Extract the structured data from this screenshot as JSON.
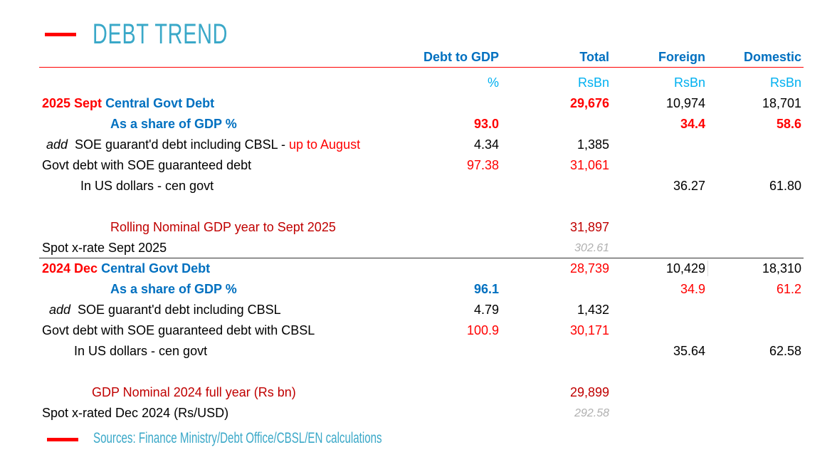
{
  "title": "DEBT TREND",
  "accent_colors": {
    "title": "#3aa8c8",
    "header": "#0070c0",
    "highlight": "#ff0000",
    "dark_red": "#c00000",
    "unit": "#00b0f0"
  },
  "columns": [
    {
      "header": "Debt to GDP",
      "unit": "%"
    },
    {
      "header": "Total",
      "unit": "RsBn"
    },
    {
      "header": "Foreign",
      "unit": "RsBn"
    },
    {
      "header": "Domestic",
      "unit": "RsBn"
    }
  ],
  "rows": [
    {
      "indent": 59,
      "parts": [
        {
          "text": "2025 Sept ",
          "cls": "red b"
        },
        {
          "text": "Central Govt Debt",
          "cls": "blue b"
        }
      ],
      "values": [
        "",
        "29,676",
        "10,974",
        "18,701"
      ],
      "vcls": [
        "",
        "red b",
        "black",
        "black"
      ]
    },
    {
      "indent": 155,
      "parts": [
        {
          "text": "As a share of GDP %",
          "cls": "blue b"
        }
      ],
      "values": [
        "93.0",
        "",
        "34.4",
        "58.6"
      ],
      "vcls": [
        "red b",
        "",
        "red b",
        "red b"
      ]
    },
    {
      "indent": 65,
      "parts": [
        {
          "text": "add ",
          "cls": "i"
        },
        {
          "text": " SOE guarant'd debt including CBSL - ",
          "cls": "black"
        },
        {
          "text": "up to August",
          "cls": "red"
        }
      ],
      "values": [
        "4.34",
        "1,385",
        "",
        ""
      ],
      "vcls": [
        "black",
        "black",
        "",
        ""
      ]
    },
    {
      "indent": 59,
      "parts": [
        {
          "text": "Govt debt with SOE guaranteed debt",
          "cls": "black"
        }
      ],
      "values": [
        "97.38",
        "31,061",
        "",
        ""
      ],
      "vcls": [
        "red",
        "red",
        "",
        ""
      ]
    },
    {
      "indent": 113,
      "parts": [
        {
          "text": "In US dollars - cen govt",
          "cls": "black"
        }
      ],
      "values": [
        "",
        "",
        "36.27",
        "61.80"
      ],
      "vcls": [
        "",
        "",
        "black",
        "black"
      ]
    },
    {
      "indent": 59,
      "parts": [],
      "values": [
        "",
        "",
        "",
        ""
      ],
      "vcls": [
        "",
        "",
        "",
        ""
      ]
    },
    {
      "indent": 155,
      "parts": [
        {
          "text": "Rolling Nominal GDP year to Sept 2025",
          "cls": "dred"
        }
      ],
      "values": [
        "",
        "31,897",
        "",
        ""
      ],
      "vcls": [
        "",
        "dred",
        "",
        ""
      ]
    },
    {
      "indent": 59,
      "parts": [
        {
          "text": "Spot x-rate Sept 2025",
          "cls": "black"
        }
      ],
      "values": [
        "",
        "302.61",
        "",
        ""
      ],
      "vcls": [
        "",
        "gray",
        "",
        ""
      ]
    },
    {
      "indent": 59,
      "parts": [
        {
          "text": "2024 Dec ",
          "cls": "red b"
        },
        {
          "text": "Central Govt Debt",
          "cls": "blue b"
        }
      ],
      "values": [
        "",
        "28,739",
        "10,429",
        "18,310"
      ],
      "vcls": [
        "",
        "red",
        "black",
        "black"
      ]
    },
    {
      "indent": 155,
      "parts": [
        {
          "text": "As a share of GDP %",
          "cls": "blue b"
        }
      ],
      "values": [
        "96.1",
        "",
        "34.9",
        "61.2"
      ],
      "vcls": [
        "blue b",
        "",
        "red",
        "red"
      ]
    },
    {
      "indent": 69,
      "parts": [
        {
          "text": "add ",
          "cls": "i"
        },
        {
          "text": " SOE guarant'd debt including CBSL",
          "cls": "black"
        }
      ],
      "values": [
        "4.79",
        "1,432",
        "",
        ""
      ],
      "vcls": [
        "black",
        "black",
        "",
        ""
      ]
    },
    {
      "indent": 59,
      "parts": [
        {
          "text": "Govt debt with SOE guaranteed debt with CBSL",
          "cls": "black"
        }
      ],
      "values": [
        "100.9",
        "30,171",
        "",
        ""
      ],
      "vcls": [
        "red",
        "red",
        "",
        ""
      ]
    },
    {
      "indent": 104,
      "parts": [
        {
          "text": "In US dollars - cen govt",
          "cls": "black"
        }
      ],
      "values": [
        "",
        "",
        "35.64",
        "62.58"
      ],
      "vcls": [
        "",
        "",
        "black",
        "black"
      ]
    },
    {
      "indent": 59,
      "parts": [],
      "values": [
        "",
        "",
        "",
        ""
      ],
      "vcls": [
        "",
        "",
        "",
        ""
      ]
    },
    {
      "indent": 129,
      "parts": [
        {
          "text": "GDP Nominal 2024 full year (Rs bn)",
          "cls": "dred"
        }
      ],
      "values": [
        "",
        "29,899",
        "",
        ""
      ],
      "vcls": [
        "",
        "dred",
        "",
        ""
      ]
    },
    {
      "indent": 59,
      "parts": [
        {
          "text": "Spot x-rated Dec 2024 (Rs/USD)",
          "cls": "black"
        }
      ],
      "values": [
        "",
        "292.58",
        "",
        ""
      ],
      "vcls": [
        "",
        "gray",
        "",
        ""
      ]
    }
  ],
  "source": "Sources: Finance  Ministry/Debt  Office/CBSL/EN  calculations"
}
